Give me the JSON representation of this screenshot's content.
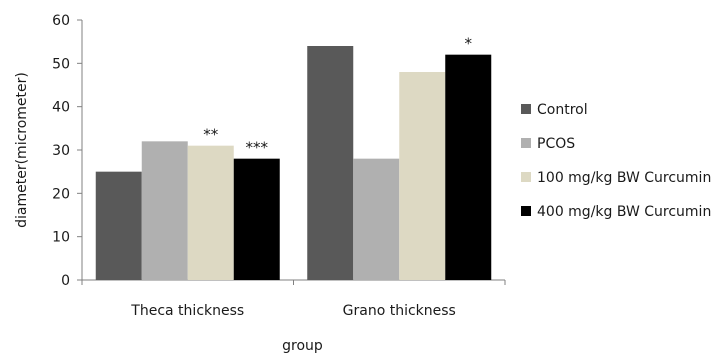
{
  "chart_data": {
    "type": "bar",
    "title": "",
    "xlabel": "group",
    "ylabel": "diameter(micrometer)",
    "ylim": [
      0,
      60
    ],
    "yticks": [
      0,
      10,
      20,
      30,
      40,
      50,
      60
    ],
    "grid": false,
    "legend_position": "right",
    "categories": [
      "Theca thickness",
      "Grano thickness"
    ],
    "series": [
      {
        "name": "Control",
        "color": "#595959",
        "values": [
          25,
          54
        ],
        "markers": [
          "",
          ""
        ]
      },
      {
        "name": "PCOS",
        "color": "#b0b0b0",
        "values": [
          32,
          28
        ],
        "markers": [
          "",
          ""
        ]
      },
      {
        "name": "100 mg/kg BW Curcumin",
        "color": "#ddd9c3",
        "values": [
          31,
          48
        ],
        "markers": [
          "**",
          ""
        ]
      },
      {
        "name": "400 mg/kg BW Curcumin",
        "color": "#000000",
        "values": [
          28,
          52
        ],
        "markers": [
          "***",
          "*"
        ]
      }
    ]
  }
}
